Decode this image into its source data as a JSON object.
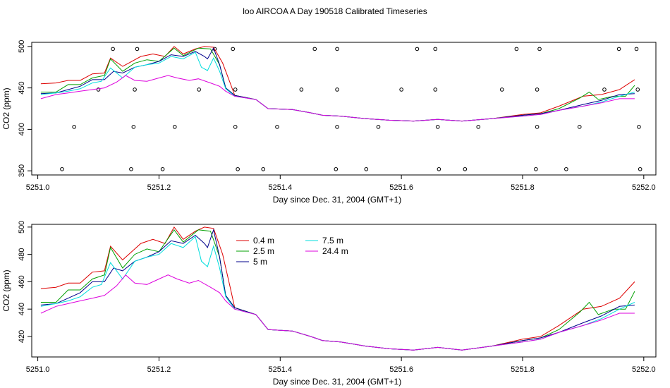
{
  "figure_title": "loo AIRCOA A  Day 190518  Calibrated Timeseries",
  "colors": {
    "0.4 m": "#dd0000",
    "2.5 m": "#00a000",
    "5 m": "#00008b",
    "7.5 m": "#00dddd",
    "24.4 m": "#dd00dd"
  },
  "chart_data": [
    {
      "type": "line",
      "title": "",
      "xlabel": "Day since Dec. 31, 2004 (GMT+1)",
      "ylabel": "CO2 (ppm)",
      "xlim": [
        5250.99,
        5252.02
      ],
      "ylim": [
        345,
        505
      ],
      "x_ticks": [
        "5251.0",
        "5251.2",
        "5251.4",
        "5251.6",
        "5251.8",
        "5252.0"
      ],
      "y_ticks": [
        "350",
        "400",
        "450",
        "500"
      ],
      "scatter_markers": [
        {
          "x": 5251.04,
          "y": 352
        },
        {
          "x": 5251.06,
          "y": 403
        },
        {
          "x": 5251.1,
          "y": 448
        },
        {
          "x": 5251.124,
          "y": 497
        },
        {
          "x": 5251.154,
          "y": 352
        },
        {
          "x": 5251.158,
          "y": 403
        },
        {
          "x": 5251.16,
          "y": 448
        },
        {
          "x": 5251.164,
          "y": 497
        },
        {
          "x": 5251.206,
          "y": 352
        },
        {
          "x": 5251.226,
          "y": 403
        },
        {
          "x": 5251.266,
          "y": 448
        },
        {
          "x": 5251.292,
          "y": 497
        },
        {
          "x": 5251.322,
          "y": 497
        },
        {
          "x": 5251.326,
          "y": 403
        },
        {
          "x": 5251.326,
          "y": 448
        },
        {
          "x": 5251.33,
          "y": 352
        },
        {
          "x": 5251.372,
          "y": 352
        },
        {
          "x": 5251.395,
          "y": 403
        },
        {
          "x": 5251.435,
          "y": 448
        },
        {
          "x": 5251.457,
          "y": 497
        },
        {
          "x": 5251.492,
          "y": 352
        },
        {
          "x": 5251.494,
          "y": 403
        },
        {
          "x": 5251.494,
          "y": 448
        },
        {
          "x": 5251.494,
          "y": 497
        },
        {
          "x": 5251.542,
          "y": 352
        },
        {
          "x": 5251.562,
          "y": 403
        },
        {
          "x": 5251.6,
          "y": 448
        },
        {
          "x": 5251.626,
          "y": 497
        },
        {
          "x": 5251.656,
          "y": 497
        },
        {
          "x": 5251.66,
          "y": 403
        },
        {
          "x": 5251.656,
          "y": 448
        },
        {
          "x": 5251.662,
          "y": 352
        },
        {
          "x": 5251.705,
          "y": 352
        },
        {
          "x": 5251.727,
          "y": 403
        },
        {
          "x": 5251.766,
          "y": 448
        },
        {
          "x": 5251.79,
          "y": 497
        },
        {
          "x": 5251.822,
          "y": 352
        },
        {
          "x": 5251.824,
          "y": 403
        },
        {
          "x": 5251.824,
          "y": 448
        },
        {
          "x": 5251.828,
          "y": 497
        },
        {
          "x": 5251.872,
          "y": 352
        },
        {
          "x": 5251.894,
          "y": 403
        },
        {
          "x": 5251.935,
          "y": 448
        },
        {
          "x": 5251.959,
          "y": 497
        },
        {
          "x": 5251.988,
          "y": 497
        },
        {
          "x": 5251.99,
          "y": 448
        },
        {
          "x": 5251.992,
          "y": 403
        },
        {
          "x": 5251.994,
          "y": 352
        }
      ],
      "series_ref": "series"
    },
    {
      "type": "line",
      "title": "",
      "xlabel": "Day since Dec. 31, 2004 (GMT+1)",
      "ylabel": "CO2 (ppm)",
      "xlim": [
        5250.99,
        5252.02
      ],
      "ylim": [
        405,
        502
      ],
      "x_ticks": [
        "5251.0",
        "5251.2",
        "5251.4",
        "5251.6",
        "5251.8",
        "5252.0"
      ],
      "y_ticks": [
        "420",
        "440",
        "460",
        "480",
        "500"
      ],
      "legend": {
        "placement": "top-center",
        "entries": [
          "0.4 m",
          "2.5 m",
          "5 m",
          "7.5 m",
          "24.4 m"
        ]
      },
      "series_ref": "series"
    }
  ],
  "series": [
    {
      "name": "0.4 m",
      "points": [
        [
          5251.005,
          455
        ],
        [
          5251.03,
          456
        ],
        [
          5251.05,
          459
        ],
        [
          5251.07,
          459
        ],
        [
          5251.09,
          467
        ],
        [
          5251.11,
          468
        ],
        [
          5251.12,
          486
        ],
        [
          5251.14,
          476
        ],
        [
          5251.15,
          480
        ],
        [
          5251.17,
          488
        ],
        [
          5251.19,
          491
        ],
        [
          5251.21,
          488
        ],
        [
          5251.225,
          500
        ],
        [
          5251.24,
          491
        ],
        [
          5251.26,
          497
        ],
        [
          5251.275,
          500
        ],
        [
          5251.29,
          499
        ],
        [
          5251.305,
          480
        ],
        [
          5251.318,
          455
        ],
        [
          5251.325,
          441
        ],
        [
          5251.36,
          436
        ],
        [
          5251.38,
          425
        ],
        [
          5251.42,
          424
        ],
        [
          5251.45,
          420
        ],
        [
          5251.47,
          417
        ],
        [
          5251.5,
          416
        ],
        [
          5251.54,
          413
        ],
        [
          5251.58,
          411
        ],
        [
          5251.62,
          410
        ],
        [
          5251.66,
          412
        ],
        [
          5251.7,
          410
        ],
        [
          5251.75,
          413
        ],
        [
          5251.8,
          418
        ],
        [
          5251.83,
          420
        ],
        [
          5251.86,
          428
        ],
        [
          5251.9,
          440
        ],
        [
          5251.93,
          442
        ],
        [
          5251.96,
          448
        ],
        [
          5251.985,
          460
        ]
      ]
    },
    {
      "name": "2.5 m",
      "points": [
        [
          5251.005,
          445
        ],
        [
          5251.03,
          445
        ],
        [
          5251.05,
          454
        ],
        [
          5251.07,
          454
        ],
        [
          5251.09,
          462
        ],
        [
          5251.11,
          465
        ],
        [
          5251.12,
          485
        ],
        [
          5251.14,
          470
        ],
        [
          5251.16,
          480
        ],
        [
          5251.18,
          484
        ],
        [
          5251.2,
          482
        ],
        [
          5251.225,
          498
        ],
        [
          5251.24,
          489
        ],
        [
          5251.265,
          498
        ],
        [
          5251.285,
          497
        ],
        [
          5251.3,
          478
        ],
        [
          5251.31,
          450
        ],
        [
          5251.325,
          441
        ],
        [
          5251.36,
          436
        ],
        [
          5251.38,
          425
        ],
        [
          5251.42,
          424
        ],
        [
          5251.45,
          420
        ],
        [
          5251.47,
          417
        ],
        [
          5251.5,
          416
        ],
        [
          5251.54,
          413
        ],
        [
          5251.58,
          411
        ],
        [
          5251.62,
          410
        ],
        [
          5251.66,
          412
        ],
        [
          5251.7,
          410
        ],
        [
          5251.75,
          413
        ],
        [
          5251.8,
          417
        ],
        [
          5251.83,
          419
        ],
        [
          5251.86,
          425
        ],
        [
          5251.895,
          438
        ],
        [
          5251.91,
          445
        ],
        [
          5251.925,
          436
        ],
        [
          5251.95,
          440
        ],
        [
          5251.97,
          440
        ],
        [
          5251.985,
          453
        ]
      ]
    },
    {
      "name": "5 m",
      "points": [
        [
          5251.005,
          443
        ],
        [
          5251.03,
          444
        ],
        [
          5251.05,
          448
        ],
        [
          5251.07,
          452
        ],
        [
          5251.09,
          460
        ],
        [
          5251.11,
          460
        ],
        [
          5251.125,
          470
        ],
        [
          5251.14,
          468
        ],
        [
          5251.16,
          475
        ],
        [
          5251.18,
          478
        ],
        [
          5251.2,
          482
        ],
        [
          5251.22,
          490
        ],
        [
          5251.24,
          488
        ],
        [
          5251.26,
          494
        ],
        [
          5251.275,
          488
        ],
        [
          5251.28,
          485
        ],
        [
          5251.29,
          498
        ],
        [
          5251.3,
          478
        ],
        [
          5251.31,
          450
        ],
        [
          5251.325,
          441
        ],
        [
          5251.36,
          436
        ],
        [
          5251.38,
          425
        ],
        [
          5251.42,
          424
        ],
        [
          5251.45,
          420
        ],
        [
          5251.47,
          417
        ],
        [
          5251.5,
          416
        ],
        [
          5251.54,
          413
        ],
        [
          5251.58,
          411
        ],
        [
          5251.62,
          410
        ],
        [
          5251.66,
          412
        ],
        [
          5251.7,
          410
        ],
        [
          5251.75,
          413
        ],
        [
          5251.8,
          417
        ],
        [
          5251.83,
          419
        ],
        [
          5251.86,
          423
        ],
        [
          5251.9,
          430
        ],
        [
          5251.93,
          435
        ],
        [
          5251.96,
          442
        ],
        [
          5251.985,
          443
        ]
      ]
    },
    {
      "name": "7.5 m",
      "points": [
        [
          5251.005,
          442
        ],
        [
          5251.03,
          444
        ],
        [
          5251.05,
          446
        ],
        [
          5251.07,
          449
        ],
        [
          5251.09,
          456
        ],
        [
          5251.105,
          458
        ],
        [
          5251.12,
          474
        ],
        [
          5251.14,
          462
        ],
        [
          5251.16,
          475
        ],
        [
          5251.18,
          478
        ],
        [
          5251.2,
          480
        ],
        [
          5251.22,
          488
        ],
        [
          5251.24,
          485
        ],
        [
          5251.26,
          493
        ],
        [
          5251.27,
          475
        ],
        [
          5251.28,
          471
        ],
        [
          5251.29,
          486
        ],
        [
          5251.3,
          470
        ],
        [
          5251.31,
          449
        ],
        [
          5251.325,
          440
        ],
        [
          5251.36,
          436
        ],
        [
          5251.38,
          425
        ],
        [
          5251.42,
          424
        ],
        [
          5251.45,
          420
        ],
        [
          5251.47,
          417
        ],
        [
          5251.5,
          416
        ],
        [
          5251.54,
          413
        ],
        [
          5251.58,
          411
        ],
        [
          5251.62,
          410
        ],
        [
          5251.66,
          412
        ],
        [
          5251.7,
          410
        ],
        [
          5251.75,
          413
        ],
        [
          5251.8,
          416
        ],
        [
          5251.83,
          418
        ],
        [
          5251.86,
          423
        ],
        [
          5251.9,
          428
        ],
        [
          5251.93,
          433
        ],
        [
          5251.96,
          440
        ],
        [
          5251.985,
          445
        ]
      ]
    },
    {
      "name": "24.4 m",
      "points": [
        [
          5251.005,
          437
        ],
        [
          5251.03,
          442
        ],
        [
          5251.05,
          444
        ],
        [
          5251.07,
          446
        ],
        [
          5251.09,
          448
        ],
        [
          5251.11,
          450
        ],
        [
          5251.13,
          457
        ],
        [
          5251.145,
          465
        ],
        [
          5251.16,
          459
        ],
        [
          5251.18,
          458
        ],
        [
          5251.2,
          462
        ],
        [
          5251.215,
          465
        ],
        [
          5251.23,
          462
        ],
        [
          5251.25,
          459
        ],
        [
          5251.265,
          461
        ],
        [
          5251.285,
          456
        ],
        [
          5251.3,
          452
        ],
        [
          5251.31,
          446
        ],
        [
          5251.325,
          440
        ],
        [
          5251.36,
          436
        ],
        [
          5251.38,
          425
        ],
        [
          5251.42,
          424
        ],
        [
          5251.45,
          420
        ],
        [
          5251.47,
          417
        ],
        [
          5251.5,
          416
        ],
        [
          5251.54,
          413
        ],
        [
          5251.58,
          411
        ],
        [
          5251.62,
          410
        ],
        [
          5251.66,
          412
        ],
        [
          5251.7,
          410
        ],
        [
          5251.75,
          413
        ],
        [
          5251.8,
          416
        ],
        [
          5251.83,
          418
        ],
        [
          5251.86,
          423
        ],
        [
          5251.9,
          428
        ],
        [
          5251.93,
          432
        ],
        [
          5251.96,
          437
        ],
        [
          5251.985,
          437
        ]
      ]
    }
  ]
}
